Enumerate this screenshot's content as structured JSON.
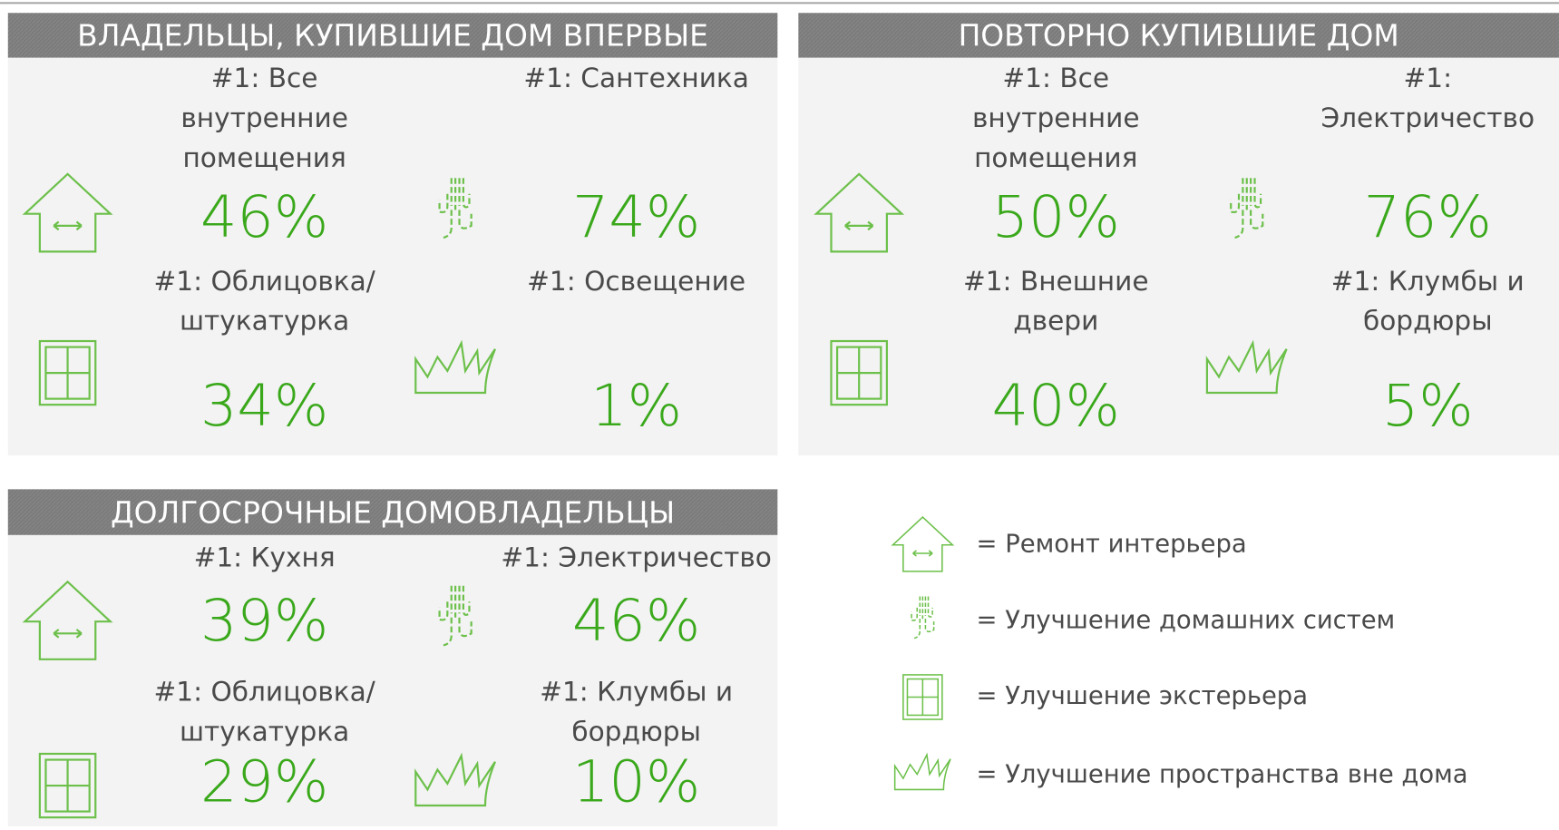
{
  "panels": [
    {
      "title": "ВЛАДЕЛЬЦЫ, КУПИВШИЕ ДОМ ВПЕРВЫЕ",
      "items": [
        {
          "label": [
            "#1: Все",
            "внутренние",
            "помещения"
          ],
          "value": "46%"
        },
        {
          "label": [
            "#1: Сантехника"
          ],
          "value": "74%"
        },
        {
          "label": [
            "#1: Облицовка/",
            "штукатурка"
          ],
          "value": "34%"
        },
        {
          "label": [
            "#1: Освещение"
          ],
          "value": "1%"
        }
      ]
    },
    {
      "title": "ПОВТОРНО КУПИВШИЕ ДОМ",
      "items": [
        {
          "label": [
            "#1: Все",
            "внутренние",
            "помещения"
          ],
          "value": "50%"
        },
        {
          "label": [
            "#1:",
            "Электричество"
          ],
          "value": "76%"
        },
        {
          "label": [
            "#1: Внешние",
            "двери"
          ],
          "value": "40%"
        },
        {
          "label": [
            "#1: Клумбы и",
            "бордюры"
          ],
          "value": "5%"
        }
      ]
    },
    {
      "title": "ДОЛГОСРОЧНЫЕ ДОМОВЛАДЕЛЬЦЫ",
      "items": [
        {
          "label": [
            "#1: Кухня"
          ],
          "value": "39%"
        },
        {
          "label": [
            "#1: Электричество"
          ],
          "value": "46%"
        },
        {
          "label": [
            "#1: Облицовка/",
            "штукатурка"
          ],
          "value": "29%"
        },
        {
          "label": [
            "#1: Клумбы и",
            "бордюры"
          ],
          "value": "10%"
        }
      ]
    }
  ],
  "legend": [
    "= Ремонт интерьера",
    "= Улучшение домашних систем",
    "= Улучшение экстерьера",
    "= Улучшение пространства вне дома"
  ]
}
